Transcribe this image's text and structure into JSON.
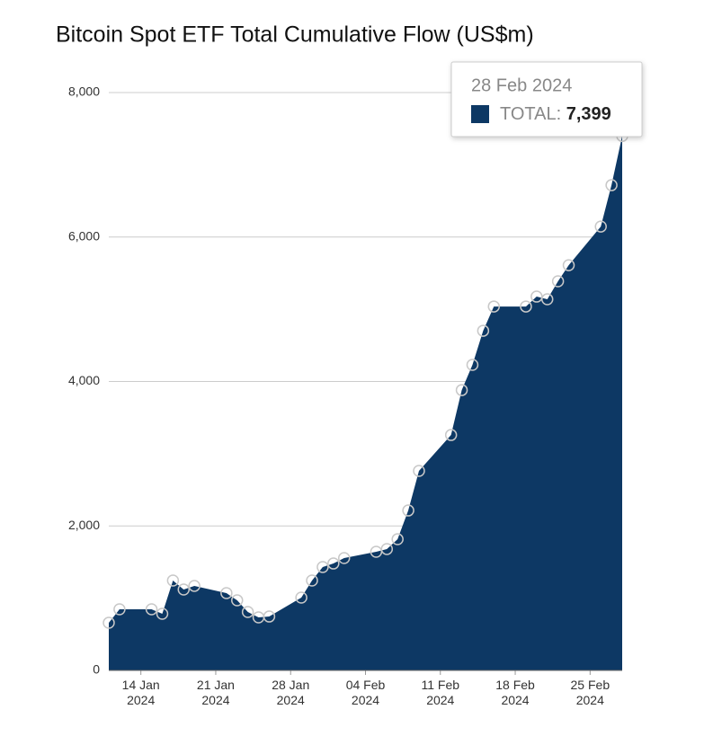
{
  "chart_data": {
    "type": "area",
    "title": "Bitcoin Spot ETF Total Cumulative Flow (US$m)",
    "x": [
      "11 Jan 2024",
      "12 Jan 2024",
      "15 Jan 2024",
      "16 Jan 2024",
      "17 Jan 2024",
      "18 Jan 2024",
      "19 Jan 2024",
      "22 Jan 2024",
      "23 Jan 2024",
      "24 Jan 2024",
      "25 Jan 2024",
      "26 Jan 2024",
      "29 Jan 2024",
      "30 Jan 2024",
      "31 Jan 2024",
      "01 Feb 2024",
      "02 Feb 2024",
      "05 Feb 2024",
      "06 Feb 2024",
      "07 Feb 2024",
      "08 Feb 2024",
      "09 Feb 2024",
      "12 Feb 2024",
      "13 Feb 2024",
      "14 Feb 2024",
      "15 Feb 2024",
      "16 Feb 2024",
      "19 Feb 2024",
      "20 Feb 2024",
      "21 Feb 2024",
      "22 Feb 2024",
      "23 Feb 2024",
      "26 Feb 2024",
      "27 Feb 2024",
      "28 Feb 2024"
    ],
    "values": [
      659,
      846,
      846,
      784,
      1244,
      1120,
      1170,
      1070,
      970,
      809,
      734,
      746,
      1008,
      1244,
      1431,
      1480,
      1555,
      1642,
      1680,
      1816,
      2214,
      2762,
      3259,
      3881,
      4230,
      4702,
      5038,
      5038,
      5175,
      5138,
      5387,
      5610,
      6145,
      6718,
      7399
    ],
    "color": "#0d3864",
    "xlim": [
      "11 Jan 2024",
      "28 Feb 2024"
    ],
    "xticks": [
      "14 Jan 2024",
      "21 Jan 2024",
      "28 Jan 2024",
      "04 Feb 2024",
      "11 Feb 2024",
      "18 Feb 2024",
      "25 Feb 2024"
    ],
    "ylim": [
      0,
      8000
    ],
    "yticks": [
      0,
      {
        "value": 2000,
        "label": "2,000"
      },
      {
        "value": 4000,
        "label": "4,000"
      },
      {
        "value": 6000,
        "label": "6,000"
      },
      {
        "value": 8000,
        "label": "8,000"
      }
    ],
    "grid": true,
    "tooltip": {
      "date": "28 Feb 2024",
      "series_label": "TOTAL:",
      "value_label": "7,399"
    }
  }
}
